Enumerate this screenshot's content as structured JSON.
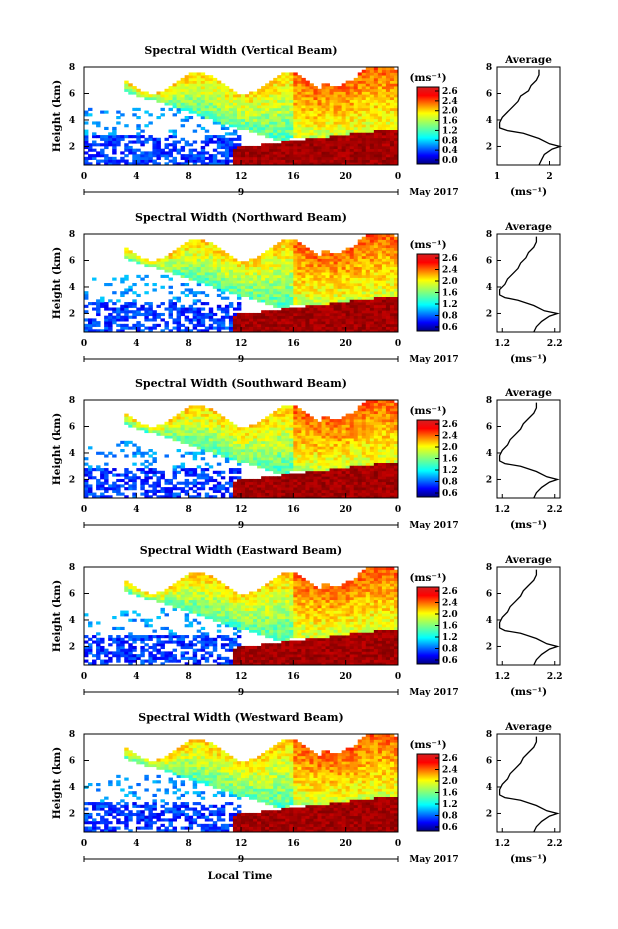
{
  "figure": {
    "ylabel": "Height (km)",
    "bottom_label": "Local Time",
    "date_day": "9",
    "date_month": "May 2017",
    "colorbar_unit": "(ms⁻¹)",
    "profile_title": "Average",
    "profile_xlabel": "(ms⁻¹)"
  },
  "chart_data": [
    {
      "type": "heatmap",
      "title": "Spectral Width (Vertical Beam)",
      "xlabel": "Local Time",
      "ylabel": "Height (km)",
      "x_ticks": [
        "0",
        "4",
        "8",
        "12",
        "16",
        "20",
        "0"
      ],
      "x_range": [
        0,
        24
      ],
      "y_ticks": [
        "2",
        "4",
        "6",
        "8"
      ],
      "y_range": [
        0.6,
        8.0
      ],
      "colorbar": {
        "label": "(ms⁻¹)",
        "range": [
          0.0,
          2.6
        ],
        "ticks": [
          "2.6",
          "2.4",
          "2.0",
          "1.6",
          "1.2",
          "0.8",
          "0.4",
          "0.0"
        ]
      },
      "profile": {
        "title": "Average",
        "xlabel": "(ms⁻¹)",
        "x_ticks": [
          "1",
          "2"
        ],
        "x_range": [
          1.0,
          2.2
        ],
        "y_ticks": [
          "2",
          "4",
          "6",
          "8"
        ],
        "y_range": [
          0.6,
          8.0
        ],
        "height": [
          0.6,
          1.0,
          1.4,
          1.8,
          2.0,
          2.2,
          2.6,
          3.0,
          3.2,
          3.4,
          3.8,
          4.2,
          4.6,
          5.0,
          5.4,
          5.8,
          6.2,
          6.6,
          7.0,
          7.4,
          7.8
        ],
        "value": [
          1.8,
          1.85,
          1.9,
          2.05,
          2.2,
          2.0,
          1.8,
          1.5,
          1.2,
          1.05,
          1.05,
          1.1,
          1.2,
          1.3,
          1.4,
          1.45,
          1.6,
          1.65,
          1.75,
          1.8,
          1.8
        ]
      }
    },
    {
      "type": "heatmap",
      "title": "Spectral Width (Northward Beam)",
      "xlabel": "Local Time",
      "ylabel": "Height (km)",
      "x_ticks": [
        "0",
        "4",
        "8",
        "12",
        "16",
        "20",
        "0"
      ],
      "x_range": [
        0,
        24
      ],
      "y_ticks": [
        "2",
        "4",
        "6",
        "8"
      ],
      "y_range": [
        0.6,
        8.0
      ],
      "colorbar": {
        "label": "(ms⁻¹)",
        "range": [
          0.6,
          2.6
        ],
        "ticks": [
          "2.6",
          "2.4",
          "2.0",
          "1.6",
          "1.2",
          "0.8",
          "0.6"
        ]
      },
      "profile": {
        "title": "Average",
        "xlabel": "(ms⁻¹)",
        "x_ticks": [
          "1.2",
          "2.2"
        ],
        "x_range": [
          1.1,
          2.3
        ],
        "y_ticks": [
          "2",
          "4",
          "6",
          "8"
        ],
        "y_range": [
          0.6,
          8.0
        ],
        "height": [
          0.6,
          1.0,
          1.4,
          1.8,
          2.0,
          2.2,
          2.6,
          3.0,
          3.2,
          3.4,
          3.8,
          4.2,
          4.6,
          5.0,
          5.4,
          5.8,
          6.2,
          6.6,
          7.0,
          7.4,
          7.8
        ],
        "value": [
          1.8,
          1.85,
          1.95,
          2.1,
          2.25,
          2.0,
          1.8,
          1.5,
          1.25,
          1.15,
          1.15,
          1.25,
          1.3,
          1.4,
          1.5,
          1.55,
          1.65,
          1.7,
          1.8,
          1.85,
          1.85
        ]
      }
    },
    {
      "type": "heatmap",
      "title": "Spectral Width (Southward Beam)",
      "xlabel": "Local Time",
      "ylabel": "Height (km)",
      "x_ticks": [
        "0",
        "4",
        "8",
        "12",
        "16",
        "20",
        "0"
      ],
      "x_range": [
        0,
        24
      ],
      "y_ticks": [
        "2",
        "4",
        "6",
        "8"
      ],
      "y_range": [
        0.6,
        8.0
      ],
      "colorbar": {
        "label": "(ms⁻¹)",
        "range": [
          0.6,
          2.6
        ],
        "ticks": [
          "2.6",
          "2.4",
          "2.0",
          "1.6",
          "1.2",
          "0.8",
          "0.6"
        ]
      },
      "profile": {
        "title": "Average",
        "xlabel": "(ms⁻¹)",
        "x_ticks": [
          "1.2",
          "2.2"
        ],
        "x_range": [
          1.1,
          2.3
        ],
        "y_ticks": [
          "2",
          "4",
          "6",
          "8"
        ],
        "y_range": [
          0.6,
          8.0
        ],
        "height": [
          0.6,
          1.0,
          1.4,
          1.8,
          2.0,
          2.2,
          2.6,
          3.0,
          3.2,
          3.4,
          3.8,
          4.2,
          4.6,
          5.0,
          5.4,
          5.8,
          6.2,
          6.6,
          7.0,
          7.4,
          7.8
        ],
        "value": [
          1.8,
          1.85,
          1.95,
          2.1,
          2.25,
          2.05,
          1.85,
          1.55,
          1.25,
          1.15,
          1.15,
          1.2,
          1.3,
          1.35,
          1.45,
          1.55,
          1.6,
          1.7,
          1.8,
          1.85,
          1.85
        ]
      }
    },
    {
      "type": "heatmap",
      "title": "Spectral Width (Eastward Beam)",
      "xlabel": "Local Time",
      "ylabel": "Height (km)",
      "x_ticks": [
        "0",
        "4",
        "8",
        "12",
        "16",
        "20",
        "0"
      ],
      "x_range": [
        0,
        24
      ],
      "y_ticks": [
        "2",
        "4",
        "6",
        "8"
      ],
      "y_range": [
        0.6,
        8.0
      ],
      "colorbar": {
        "label": "(ms⁻¹)",
        "range": [
          0.6,
          2.6
        ],
        "ticks": [
          "2.6",
          "2.4",
          "2.0",
          "1.6",
          "1.2",
          "0.8",
          "0.6"
        ]
      },
      "profile": {
        "title": "Average",
        "xlabel": "(ms⁻¹)",
        "x_ticks": [
          "1.2",
          "2.2"
        ],
        "x_range": [
          1.1,
          2.3
        ],
        "y_ticks": [
          "2",
          "4",
          "6",
          "8"
        ],
        "y_range": [
          0.6,
          8.0
        ],
        "height": [
          0.6,
          1.0,
          1.4,
          1.8,
          2.0,
          2.2,
          2.6,
          3.0,
          3.2,
          3.4,
          3.8,
          4.2,
          4.6,
          5.0,
          5.4,
          5.8,
          6.2,
          6.6,
          7.0,
          7.4,
          7.8
        ],
        "value": [
          1.8,
          1.85,
          1.95,
          2.1,
          2.25,
          2.05,
          1.85,
          1.55,
          1.25,
          1.15,
          1.15,
          1.2,
          1.3,
          1.35,
          1.45,
          1.55,
          1.6,
          1.7,
          1.8,
          1.85,
          1.85
        ]
      }
    },
    {
      "type": "heatmap",
      "title": "Spectral Width (Westward Beam)",
      "xlabel": "Local Time",
      "ylabel": "Height (km)",
      "x_ticks": [
        "0",
        "4",
        "8",
        "12",
        "16",
        "20",
        "0"
      ],
      "x_range": [
        0,
        24
      ],
      "y_ticks": [
        "2",
        "4",
        "6",
        "8"
      ],
      "y_range": [
        0.6,
        8.0
      ],
      "colorbar": {
        "label": "(ms⁻¹)",
        "range": [
          0.6,
          2.6
        ],
        "ticks": [
          "2.6",
          "2.4",
          "2.0",
          "1.6",
          "1.2",
          "0.8",
          "0.6"
        ]
      },
      "profile": {
        "title": "Average",
        "xlabel": "(ms⁻¹)",
        "x_ticks": [
          "1.2",
          "2.2"
        ],
        "x_range": [
          1.1,
          2.3
        ],
        "y_ticks": [
          "2",
          "4",
          "6",
          "8"
        ],
        "y_range": [
          0.6,
          8.0
        ],
        "height": [
          0.6,
          1.0,
          1.4,
          1.8,
          2.0,
          2.2,
          2.6,
          3.0,
          3.2,
          3.4,
          3.8,
          4.2,
          4.6,
          5.0,
          5.4,
          5.8,
          6.2,
          6.6,
          7.0,
          7.4,
          7.8
        ],
        "value": [
          1.8,
          1.85,
          1.95,
          2.1,
          2.25,
          2.05,
          1.85,
          1.55,
          1.25,
          1.15,
          1.15,
          1.2,
          1.3,
          1.35,
          1.45,
          1.55,
          1.6,
          1.7,
          1.8,
          1.85,
          1.85
        ]
      }
    }
  ]
}
